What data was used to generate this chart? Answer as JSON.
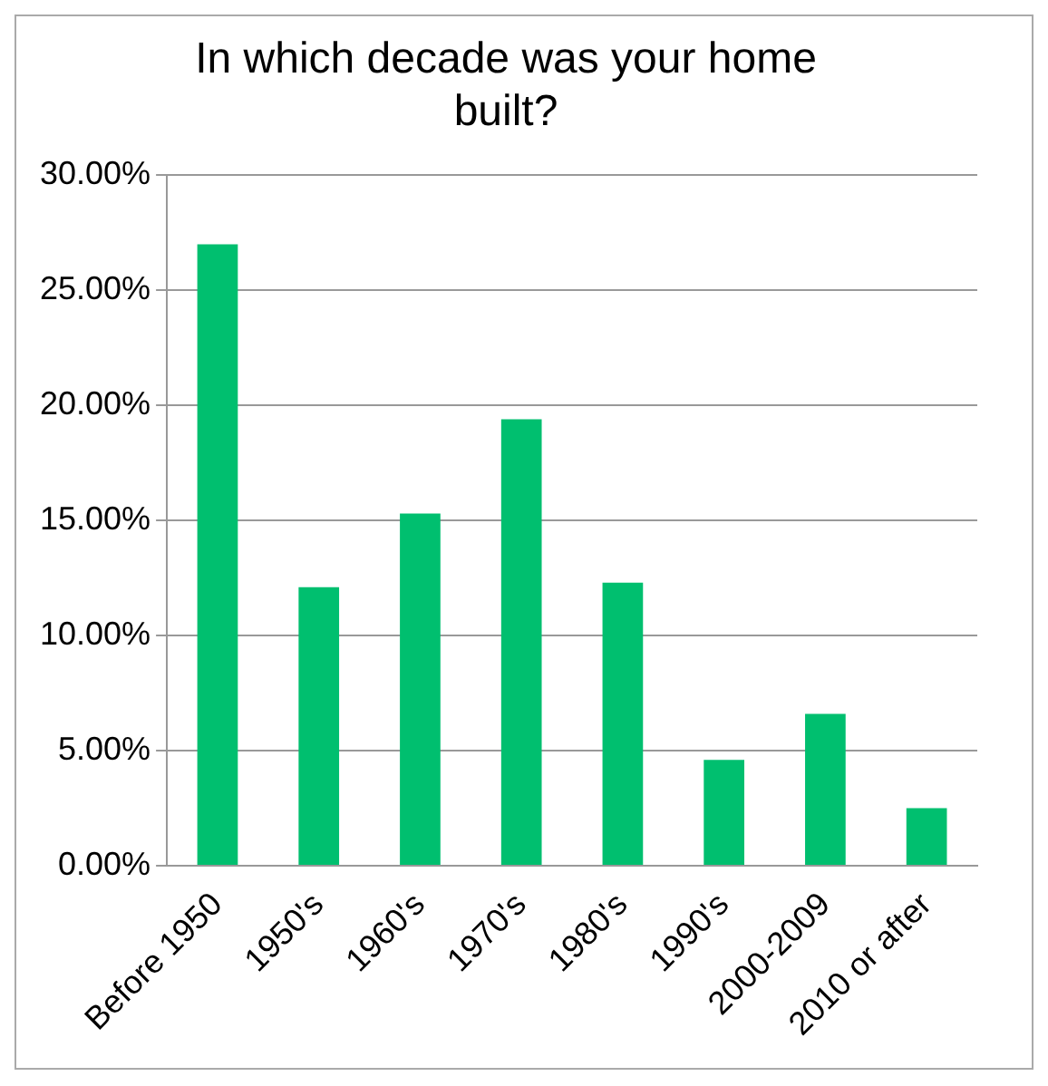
{
  "chart_data": {
    "type": "bar",
    "title": "In which decade was your home built?",
    "categories": [
      "Before 1950",
      "1950's",
      "1960's",
      "1970's",
      "1980's",
      "1990's",
      "2000-2009",
      "2010 or after"
    ],
    "values": [
      27.0,
      12.1,
      15.3,
      19.4,
      12.3,
      4.6,
      6.6,
      2.5
    ],
    "color": "#00bf6f",
    "ylim": [
      0,
      30
    ],
    "yticks": [
      {
        "value": 0,
        "label": "0.00%"
      },
      {
        "value": 5,
        "label": "5.00%"
      },
      {
        "value": 10,
        "label": "10.00%"
      },
      {
        "value": 15,
        "label": "15.00%"
      },
      {
        "value": 20,
        "label": "20.00%"
      },
      {
        "value": 25,
        "label": "25.00%"
      },
      {
        "value": 30,
        "label": "30.00%"
      }
    ],
    "grid": "y",
    "legend": false
  }
}
